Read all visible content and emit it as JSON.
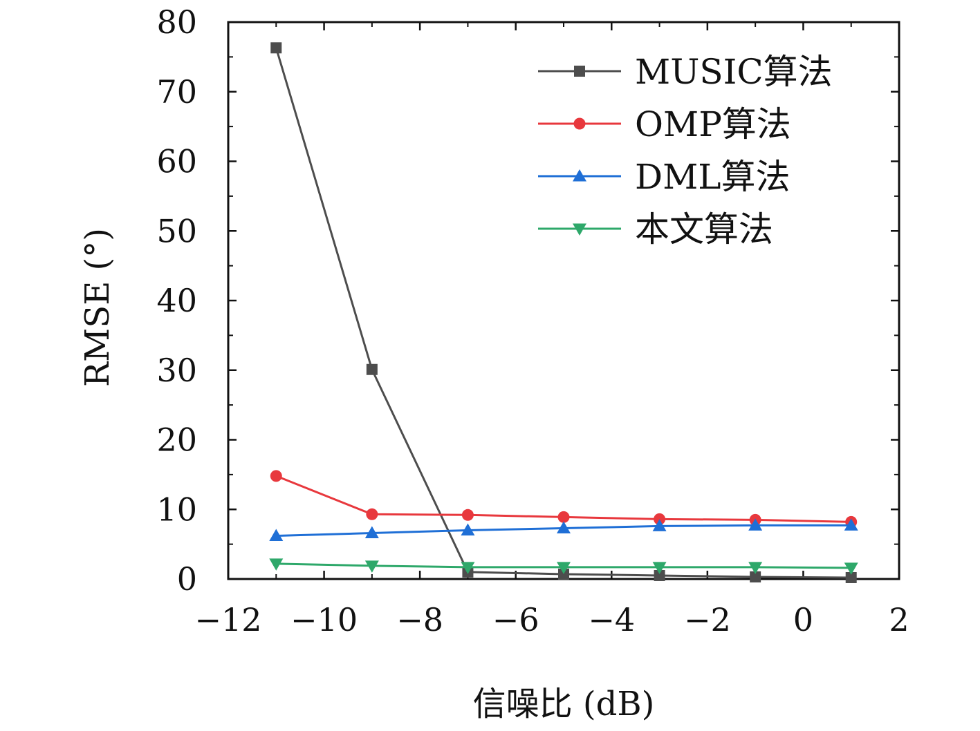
{
  "chart_data": {
    "type": "line",
    "title": "",
    "xlabel": "信噪比 (dB)",
    "ylabel": "RMSE (°)",
    "xlim": [
      -12,
      2
    ],
    "ylim": [
      0,
      80
    ],
    "xticks": [
      -12,
      -10,
      -8,
      -6,
      -4,
      -2,
      0,
      2
    ],
    "yticks": [
      0,
      10,
      20,
      30,
      40,
      50,
      60,
      70,
      80
    ],
    "xtick_labels": [
      "−12",
      "−10",
      "−8",
      "−6",
      "−4",
      "−2",
      "0",
      "2"
    ],
    "ytick_labels": [
      "0",
      "10",
      "20",
      "30",
      "40",
      "50",
      "60",
      "70",
      "80"
    ],
    "grid": false,
    "legend_position": "top-right",
    "x": [
      -11,
      -9,
      -7,
      -5,
      -3,
      -1,
      1
    ],
    "series": [
      {
        "name": "MUSIC算法",
        "color": "#4d4d4d",
        "marker": "square",
        "values": [
          76.3,
          30.1,
          1.0,
          0.7,
          0.5,
          0.3,
          0.2
        ]
      },
      {
        "name": "OMP算法",
        "color": "#e8383d",
        "marker": "circle",
        "values": [
          14.8,
          9.3,
          9.2,
          8.9,
          8.6,
          8.5,
          8.2
        ]
      },
      {
        "name": "DML算法",
        "color": "#1f6fd6",
        "marker": "triangle-up",
        "values": [
          6.2,
          6.6,
          7.0,
          7.3,
          7.6,
          7.7,
          7.7
        ]
      },
      {
        "name": "本文算法",
        "color": "#2ea86a",
        "marker": "triangle-down",
        "values": [
          2.2,
          1.9,
          1.7,
          1.7,
          1.7,
          1.7,
          1.6
        ]
      }
    ]
  }
}
